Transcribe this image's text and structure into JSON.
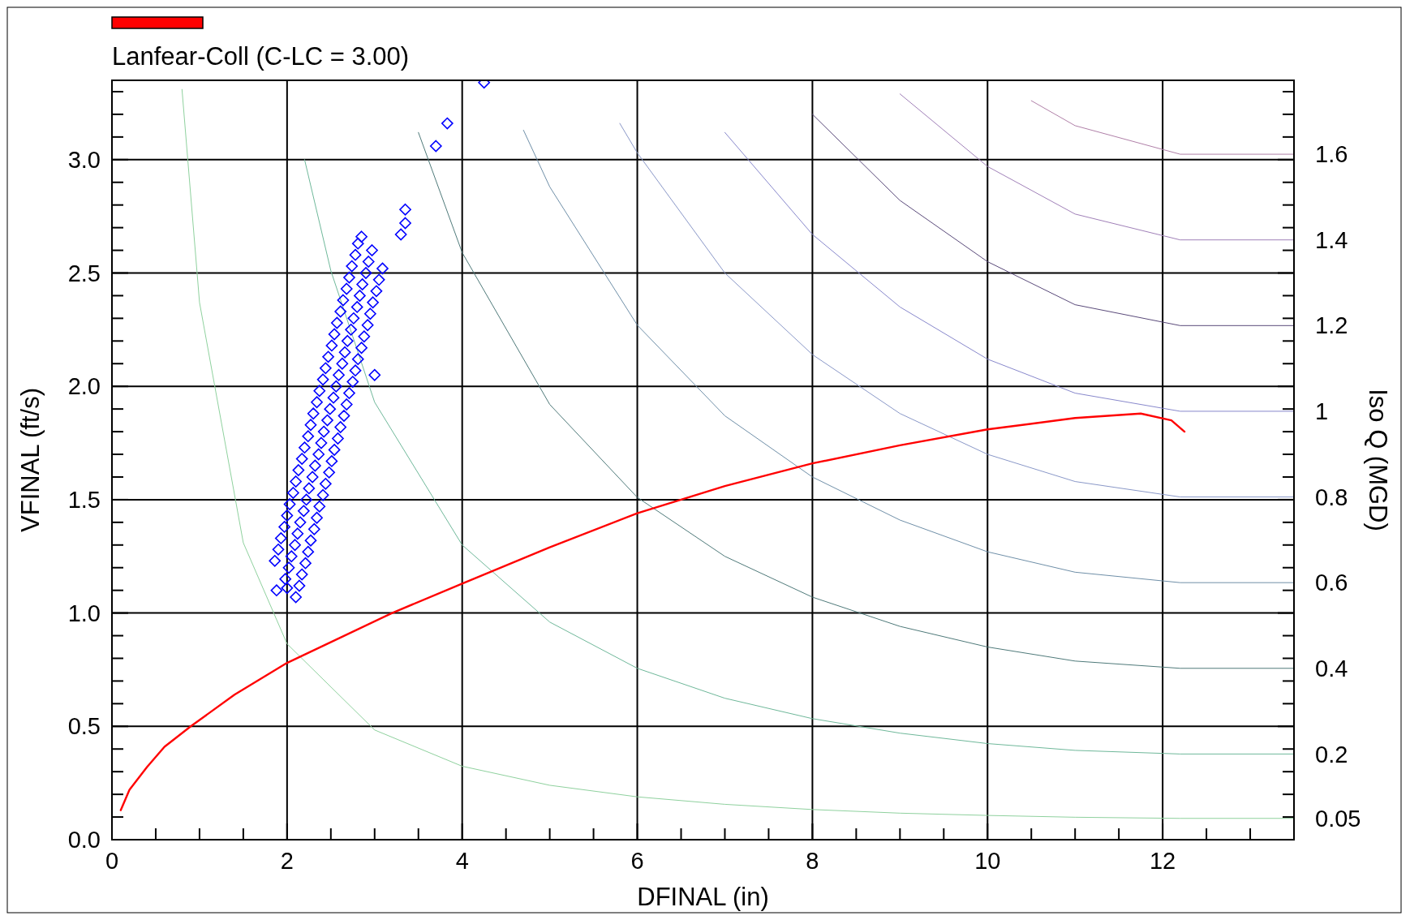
{
  "chart_data": {
    "type": "scatter",
    "xlabel": "DFINAL (in)",
    "ylabel": "VFINAL (ft/s)",
    "y2label": "Iso Q (MGD)",
    "xlim": [
      0,
      13.5
    ],
    "ylim": [
      0,
      3.35
    ],
    "y2lim": [
      0,
      1.772
    ],
    "xticks": [
      0,
      {
        "value": 0.5,
        "label": null
      },
      {
        "value": 1,
        "label": null
      },
      {
        "value": 1.5,
        "label": null
      },
      2,
      {
        "value": 2.5,
        "label": null
      },
      {
        "value": 3,
        "label": null
      },
      {
        "value": 3.5,
        "label": null
      },
      4,
      {
        "value": 4.5,
        "label": null
      },
      {
        "value": 5,
        "label": null
      },
      {
        "value": 5.5,
        "label": null
      },
      6,
      {
        "value": 6.5,
        "label": null
      },
      {
        "value": 7,
        "label": null
      },
      {
        "value": 7.5,
        "label": null
      },
      8,
      {
        "value": 8.5,
        "label": null
      },
      {
        "value": 9,
        "label": null
      },
      {
        "value": 9.5,
        "label": null
      },
      10,
      {
        "value": 10.5,
        "label": null
      },
      {
        "value": 11,
        "label": null
      },
      {
        "value": 11.5,
        "label": null
      },
      12,
      {
        "value": 12.5,
        "label": null
      },
      {
        "value": 13,
        "label": null
      }
    ],
    "yticks": [
      {
        "value": 0,
        "label": "0.0"
      },
      {
        "value": 0.1,
        "label": null
      },
      {
        "value": 0.2,
        "label": null
      },
      {
        "value": 0.3,
        "label": null
      },
      {
        "value": 0.4,
        "label": null
      },
      0.5,
      {
        "value": 0.6,
        "label": null
      },
      {
        "value": 0.7,
        "label": null
      },
      {
        "value": 0.8,
        "label": null
      },
      {
        "value": 0.9,
        "label": null
      },
      {
        "value": 1,
        "label": "1.0"
      },
      {
        "value": 1.1,
        "label": null
      },
      {
        "value": 1.2,
        "label": null
      },
      {
        "value": 1.3,
        "label": null
      },
      {
        "value": 1.4,
        "label": null
      },
      1.5,
      {
        "value": 1.6,
        "label": null
      },
      {
        "value": 1.7,
        "label": null
      },
      {
        "value": 1.8,
        "label": null
      },
      {
        "value": 1.9,
        "label": null
      },
      {
        "value": 2,
        "label": "2.0"
      },
      {
        "value": 2.1,
        "label": null
      },
      {
        "value": 2.2,
        "label": null
      },
      {
        "value": 2.3,
        "label": null
      },
      {
        "value": 2.4,
        "label": null
      },
      2.5,
      {
        "value": 2.6,
        "label": null
      },
      {
        "value": 2.7,
        "label": null
      },
      {
        "value": 2.8,
        "label": null
      },
      {
        "value": 2.9,
        "label": null
      },
      {
        "value": 3,
        "label": "3.0"
      },
      {
        "value": 3.1,
        "label": null
      },
      {
        "value": 3.2,
        "label": null
      },
      {
        "value": 3.3,
        "label": null
      }
    ],
    "y2ticks": [
      0.05,
      0.2,
      0.4,
      0.6,
      0.8,
      1,
      1.2,
      1.4,
      1.6
    ],
    "grid": true,
    "legend": "top left",
    "series": [
      {
        "type": "line",
        "color": "#8fd19e",
        "x": [
          0.8,
          1,
          1.5,
          2,
          3,
          4,
          5,
          6,
          7,
          8,
          9,
          10,
          11,
          12.2,
          13.5
        ],
        "values": [
          3.31,
          2.37,
          1.31,
          0.864,
          0.484,
          0.324,
          0.24,
          0.189,
          0.156,
          0.133,
          0.117,
          0.107,
          0.099,
          0.094,
          0.094
        ]
      },
      {
        "type": "line",
        "color": "#6fb89a",
        "x": [
          2.2,
          2.5,
          3,
          4,
          5,
          6,
          7,
          8,
          9,
          10,
          11,
          12.2,
          13.5
        ],
        "values": [
          3.0,
          2.51,
          1.93,
          1.3,
          0.96,
          0.756,
          0.624,
          0.534,
          0.47,
          0.424,
          0.394,
          0.378,
          0.378
        ]
      },
      {
        "type": "line",
        "color": "#4f7a7a",
        "x": [
          3.5,
          4,
          5,
          6,
          7,
          8,
          9,
          10,
          11,
          12.2,
          13.5
        ],
        "values": [
          3.12,
          2.59,
          1.92,
          1.51,
          1.25,
          1.07,
          0.941,
          0.85,
          0.788,
          0.756,
          0.756
        ]
      },
      {
        "type": "line",
        "color": "#6f8fa8",
        "x": [
          4.7,
          5,
          6,
          7,
          8,
          9,
          10,
          11,
          12.2,
          13.5
        ],
        "values": [
          3.13,
          2.88,
          2.27,
          1.87,
          1.6,
          1.41,
          1.27,
          1.18,
          1.134,
          1.134
        ]
      },
      {
        "type": "line",
        "color": "#8a98c8",
        "x": [
          5.8,
          6,
          7,
          8,
          9,
          10,
          11,
          12.2,
          13.5
        ],
        "values": [
          3.16,
          3.03,
          2.5,
          2.14,
          1.88,
          1.7,
          1.58,
          1.512,
          1.512
        ]
      },
      {
        "type": "line",
        "color": "#8888cc",
        "x": [
          7,
          8,
          9,
          10,
          11,
          12.2,
          13.5
        ],
        "values": [
          3.12,
          2.67,
          2.35,
          2.12,
          1.97,
          1.89,
          1.89
        ]
      },
      {
        "type": "line",
        "color": "#5a4a7a",
        "x": [
          8,
          9,
          10,
          11,
          12.2,
          13.5
        ],
        "values": [
          3.2,
          2.82,
          2.55,
          2.36,
          2.268,
          2.268
        ]
      },
      {
        "type": "line",
        "color": "#a080b8",
        "x": [
          9,
          10,
          11,
          12.2,
          13.5
        ],
        "values": [
          3.29,
          2.97,
          2.76,
          2.646,
          2.646
        ]
      },
      {
        "type": "line",
        "color": "#b080a8",
        "x": [
          10.5,
          11,
          12.2,
          13.5
        ],
        "values": [
          3.26,
          3.15,
          3.024,
          3.024
        ]
      },
      {
        "type": "line",
        "name": "Lanfear-Coll (C-LC = 3.00)",
        "color": "#ff0000",
        "x": [
          0.1,
          0.2,
          0.4,
          0.6,
          0.9,
          1.4,
          2,
          2.6,
          3.2,
          4,
          5,
          6,
          6.5,
          7,
          8,
          9,
          10,
          11,
          11.75,
          12.1,
          12.25
        ],
        "values": [
          0.13,
          0.22,
          0.32,
          0.41,
          0.5,
          0.64,
          0.78,
          0.89,
          1.0,
          1.13,
          1.29,
          1.44,
          1.5,
          1.56,
          1.66,
          1.74,
          1.81,
          1.86,
          1.88,
          1.85,
          1.8
        ]
      },
      {
        "type": "scatter",
        "color": "#0000ff",
        "marker": "diamond",
        "x": [
          1.86,
          1.98,
          2.1,
          1.9,
          2.02,
          2.14,
          1.93,
          2.05,
          2.17,
          1.97,
          2.09,
          2.21,
          2.0,
          2.12,
          2.24,
          2.03,
          2.15,
          2.27,
          2.07,
          2.19,
          2.31,
          2.1,
          2.22,
          2.34,
          2.13,
          2.25,
          2.37,
          2.17,
          2.29,
          2.41,
          2.2,
          2.32,
          2.44,
          2.24,
          2.36,
          2.48,
          2.27,
          2.39,
          2.51,
          2.3,
          2.42,
          2.54,
          2.34,
          2.46,
          2.58,
          2.37,
          2.49,
          2.61,
          2.41,
          2.53,
          2.65,
          2.44,
          2.56,
          2.68,
          2.47,
          2.59,
          2.71,
          2.51,
          2.63,
          2.75,
          2.54,
          2.66,
          2.78,
          2.57,
          2.69,
          2.81,
          2.61,
          2.73,
          2.85,
          2.64,
          2.76,
          2.88,
          2.68,
          2.8,
          2.92,
          2.71,
          2.83,
          2.95,
          2.74,
          2.86,
          2.98,
          2.78,
          2.9,
          3.02,
          2.81,
          2.93,
          3.05,
          2.85,
          2.97,
          3.09,
          1.88,
          2.0,
          3.0,
          3.35,
          3.35,
          3.3,
          3.7,
          3.83,
          4.25
        ],
        "values": [
          1.23,
          1.15,
          1.07,
          1.28,
          1.2,
          1.12,
          1.33,
          1.25,
          1.17,
          1.38,
          1.3,
          1.22,
          1.43,
          1.35,
          1.27,
          1.48,
          1.4,
          1.32,
          1.53,
          1.45,
          1.37,
          1.58,
          1.5,
          1.42,
          1.63,
          1.55,
          1.47,
          1.68,
          1.6,
          1.52,
          1.73,
          1.65,
          1.57,
          1.78,
          1.7,
          1.62,
          1.83,
          1.75,
          1.67,
          1.88,
          1.8,
          1.72,
          1.93,
          1.85,
          1.77,
          1.98,
          1.9,
          1.82,
          2.03,
          1.95,
          1.87,
          2.08,
          2.0,
          1.92,
          2.13,
          2.05,
          1.97,
          2.18,
          2.1,
          2.02,
          2.23,
          2.15,
          2.07,
          2.28,
          2.2,
          2.12,
          2.33,
          2.25,
          2.17,
          2.38,
          2.3,
          2.22,
          2.43,
          2.35,
          2.27,
          2.48,
          2.4,
          2.32,
          2.53,
          2.45,
          2.37,
          2.58,
          2.5,
          2.42,
          2.63,
          2.55,
          2.47,
          2.66,
          2.6,
          2.52,
          1.1,
          1.11,
          2.05,
          2.78,
          2.72,
          2.67,
          3.06,
          3.16,
          3.34
        ]
      }
    ]
  }
}
